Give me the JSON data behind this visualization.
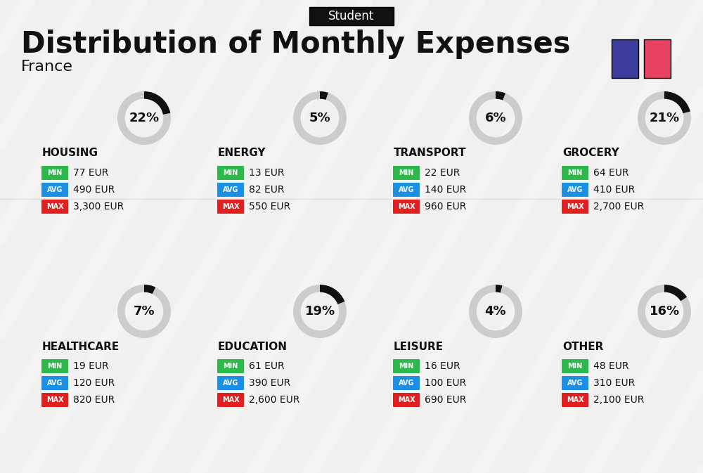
{
  "title": "Distribution of Monthly Expenses",
  "subtitle": "France",
  "tag": "Student",
  "bg_color": "#f0f0f0",
  "tag_bg": "#111111",
  "tag_color": "#ffffff",
  "flag_blue": "#3d3d9e",
  "flag_red": "#e84060",
  "categories": [
    {
      "name": "HOUSING",
      "pct": 22,
      "min_val": "77 EUR",
      "avg_val": "490 EUR",
      "max_val": "3,300 EUR",
      "col": 0,
      "row": 0
    },
    {
      "name": "ENERGY",
      "pct": 5,
      "min_val": "13 EUR",
      "avg_val": "82 EUR",
      "max_val": "550 EUR",
      "col": 1,
      "row": 0
    },
    {
      "name": "TRANSPORT",
      "pct": 6,
      "min_val": "22 EUR",
      "avg_val": "140 EUR",
      "max_val": "960 EUR",
      "col": 2,
      "row": 0
    },
    {
      "name": "GROCERY",
      "pct": 21,
      "min_val": "64 EUR",
      "avg_val": "410 EUR",
      "max_val": "2,700 EUR",
      "col": 3,
      "row": 0
    },
    {
      "name": "HEALTHCARE",
      "pct": 7,
      "min_val": "19 EUR",
      "avg_val": "120 EUR",
      "max_val": "820 EUR",
      "col": 0,
      "row": 1
    },
    {
      "name": "EDUCATION",
      "pct": 19,
      "min_val": "61 EUR",
      "avg_val": "390 EUR",
      "max_val": "2,600 EUR",
      "col": 1,
      "row": 1
    },
    {
      "name": "LEISURE",
      "pct": 4,
      "min_val": "16 EUR",
      "avg_val": "100 EUR",
      "max_val": "690 EUR",
      "col": 2,
      "row": 1
    },
    {
      "name": "OTHER",
      "pct": 16,
      "min_val": "48 EUR",
      "avg_val": "310 EUR",
      "max_val": "2,100 EUR",
      "col": 3,
      "row": 1
    }
  ],
  "min_color": "#2db84b",
  "avg_color": "#1a8fe3",
  "max_color": "#e02020",
  "label_color": "#ffffff",
  "value_color": "#111111",
  "name_color": "#111111",
  "pct_color": "#111111",
  "donut_bg": "#cccccc",
  "donut_fg": "#111111"
}
